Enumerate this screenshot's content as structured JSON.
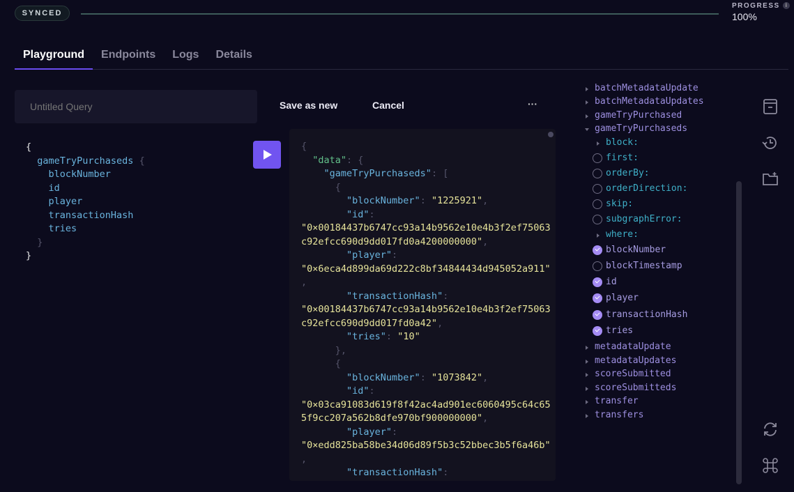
{
  "status": {
    "badge": "SYNCED",
    "progress_label": "PROGRESS",
    "progress_value": "100%",
    "progress_fraction": 1.0,
    "info_icon": "i"
  },
  "tabs": [
    {
      "label": "Playground",
      "active": true
    },
    {
      "label": "Endpoints"
    },
    {
      "label": "Logs"
    },
    {
      "label": "Details"
    }
  ],
  "query": {
    "name_placeholder": "Untitled Query",
    "save_label": "Save as new",
    "cancel_label": "Cancel",
    "more_label": "···"
  },
  "editor_lines": [
    [
      [
        "{",
        "w"
      ]
    ],
    [
      [
        "  gameTryPurchaseds ",
        "k"
      ],
      [
        "{",
        "p"
      ]
    ],
    [
      [
        "    blockNumber",
        "k"
      ]
    ],
    [
      [
        "    id",
        "k"
      ]
    ],
    [
      [
        "    player",
        "k"
      ]
    ],
    [
      [
        "    transactionHash",
        "k"
      ]
    ],
    [
      [
        "    tries",
        "k"
      ]
    ],
    [
      [
        "  }",
        "p"
      ]
    ],
    [
      [
        "}",
        "w"
      ]
    ]
  ],
  "result_lines": [
    [
      [
        "{",
        "p"
      ]
    ],
    [
      [
        "  \"data\"",
        "g"
      ],
      [
        ": {",
        "p"
      ]
    ],
    [
      [
        "    \"gameTryPurchaseds\"",
        "k"
      ],
      [
        ": [",
        "p"
      ]
    ],
    [
      [
        "      {",
        "p"
      ]
    ],
    [
      [
        "        \"blockNumber\"",
        "k"
      ],
      [
        ": ",
        "p"
      ],
      [
        "\"1225921\"",
        "s"
      ],
      [
        ",",
        "p"
      ]
    ],
    [
      [
        "        \"id\"",
        "k"
      ],
      [
        ":",
        "p"
      ]
    ],
    [
      [
        "\"0×00184437b6747cc93a14b9562e10e4b3f2ef75063",
        "s"
      ]
    ],
    [
      [
        "c92efcc690d9dd017fd0a4200000000\"",
        "s"
      ],
      [
        ",",
        "p"
      ]
    ],
    [
      [
        "        \"player\"",
        "k"
      ],
      [
        ":",
        "p"
      ]
    ],
    [
      [
        "\"0×6eca4d899da69d222c8bf34844434d945052a911\"",
        "s"
      ]
    ],
    [
      [
        ",",
        "p"
      ]
    ],
    [
      [
        "        \"transactionHash\"",
        "k"
      ],
      [
        ":",
        "p"
      ]
    ],
    [
      [
        "\"0×00184437b6747cc93a14b9562e10e4b3f2ef75063",
        "s"
      ]
    ],
    [
      [
        "c92efcc690d9dd017fd0a42\"",
        "s"
      ],
      [
        ",",
        "p"
      ]
    ],
    [
      [
        "        \"tries\"",
        "k"
      ],
      [
        ": ",
        "p"
      ],
      [
        "\"10\"",
        "s"
      ]
    ],
    [
      [
        "      },",
        "p"
      ]
    ],
    [
      [
        "      {",
        "p"
      ]
    ],
    [
      [
        "        \"blockNumber\"",
        "k"
      ],
      [
        ": ",
        "p"
      ],
      [
        "\"1073842\"",
        "s"
      ],
      [
        ",",
        "p"
      ]
    ],
    [
      [
        "        \"id\"",
        "k"
      ],
      [
        ":",
        "p"
      ]
    ],
    [
      [
        "\"0×03ca91083d619f8f42ac4ad901ec6060495c64c65",
        "s"
      ]
    ],
    [
      [
        "5f9cc207a562b8dfe970bf900000000\"",
        "s"
      ],
      [
        ",",
        "p"
      ]
    ],
    [
      [
        "        \"player\"",
        "k"
      ],
      [
        ":",
        "p"
      ]
    ],
    [
      [
        "\"0×edd825ba58be34d06d89f5b3c52bbec3b5f6a46b\"",
        "s"
      ]
    ],
    [
      [
        ",",
        "p"
      ]
    ],
    [
      [
        "        \"transactionHash\"",
        "k"
      ],
      [
        ":",
        "p"
      ]
    ]
  ],
  "explorer": [
    {
      "label": "batchMetadataUpdate",
      "kind": "root",
      "control": "tri"
    },
    {
      "label": "batchMetadataUpdates",
      "kind": "root",
      "control": "tri"
    },
    {
      "label": "gameTryPurchased",
      "kind": "root",
      "control": "tri"
    },
    {
      "label": "gameTryPurchaseds",
      "kind": "root",
      "control": "tri-down"
    },
    {
      "label": "block:",
      "kind": "arg",
      "control": "tri"
    },
    {
      "label": "first:",
      "kind": "arg",
      "control": "off"
    },
    {
      "label": "orderBy:",
      "kind": "arg",
      "control": "off"
    },
    {
      "label": "orderDirection:",
      "kind": "arg",
      "control": "off"
    },
    {
      "label": "skip:",
      "kind": "arg",
      "control": "off"
    },
    {
      "label": "subgraphError:",
      "kind": "arg",
      "control": "off"
    },
    {
      "label": "where:",
      "kind": "arg",
      "control": "tri"
    },
    {
      "label": "blockNumber",
      "kind": "field",
      "control": "on"
    },
    {
      "label": "blockTimestamp",
      "kind": "field",
      "control": "off"
    },
    {
      "label": "id",
      "kind": "field",
      "control": "on"
    },
    {
      "label": "player",
      "kind": "field",
      "control": "on"
    },
    {
      "label": "transactionHash",
      "kind": "field",
      "control": "on"
    },
    {
      "label": "tries",
      "kind": "field",
      "control": "on"
    },
    {
      "label": "metadataUpdate",
      "kind": "root",
      "control": "tri"
    },
    {
      "label": "metadataUpdates",
      "kind": "root",
      "control": "tri"
    },
    {
      "label": "scoreSubmitted",
      "kind": "root",
      "control": "tri"
    },
    {
      "label": "scoreSubmitteds",
      "kind": "root",
      "control": "tri"
    },
    {
      "label": "transfer",
      "kind": "root",
      "control": "tri"
    },
    {
      "label": "transfers",
      "kind": "root",
      "control": "tri"
    }
  ],
  "side_icons": [
    "saved-queries-icon",
    "history-icon",
    "new-folder-icon",
    "refresh-icon",
    "command-icon"
  ],
  "colors": {
    "accent": "#7154f0",
    "key": "#6ab4de",
    "string": "#e6e39a",
    "root": "#9d8fe0",
    "arg": "#3fb0c8",
    "check": "#a58cf4"
  }
}
